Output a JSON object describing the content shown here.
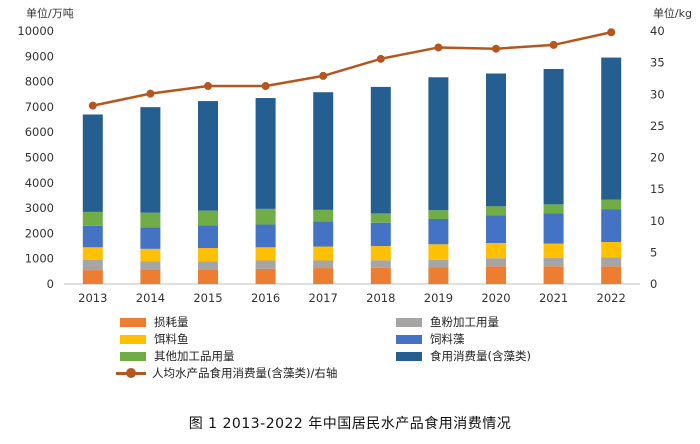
{
  "units": {
    "left": "单位/万吨",
    "right": "单位/kg"
  },
  "caption": "图 1 2013-2022 年中国居民水产品食用消费情况",
  "legend": [
    {
      "key": "loss",
      "label": "损耗量"
    },
    {
      "key": "fishmeal",
      "label": "鱼粉加工用量"
    },
    {
      "key": "feedfish",
      "label": "饵料鱼"
    },
    {
      "key": "feedalgae",
      "label": "饲料藻"
    },
    {
      "key": "otherproc",
      "label": "其他加工品用量"
    },
    {
      "key": "food",
      "label": "食用消费量(含藻类)"
    },
    {
      "key": "percapita",
      "label": "人均水产品食用消费量(含藻类)/右轴"
    }
  ],
  "chart_data": {
    "type": "bar",
    "stacked": true,
    "categories": [
      "2013",
      "2014",
      "2015",
      "2016",
      "2017",
      "2018",
      "2019",
      "2020",
      "2021",
      "2022"
    ],
    "series": [
      {
        "key": "loss",
        "name": "损耗量",
        "color": "#ed7d31",
        "axis": "left",
        "values": [
          550,
          570,
          580,
          600,
          630,
          640,
          650,
          700,
          700,
          700
        ]
      },
      {
        "key": "fishmeal",
        "name": "鱼粉加工用量",
        "color": "#a5a5a5",
        "axis": "left",
        "values": [
          400,
          320,
          320,
          330,
          300,
          300,
          300,
          320,
          340,
          360
        ]
      },
      {
        "key": "feedfish",
        "name": "饵料鱼",
        "color": "#ffc000",
        "axis": "left",
        "values": [
          500,
          500,
          520,
          520,
          550,
          560,
          620,
          600,
          560,
          600
        ]
      },
      {
        "key": "feedalgae",
        "name": "饲料藻",
        "color": "#4472c4",
        "axis": "left",
        "values": [
          850,
          850,
          900,
          900,
          1000,
          920,
          1000,
          1100,
          1200,
          1300
        ]
      },
      {
        "key": "otherproc",
        "name": "其他加工品用量",
        "color": "#70ad47",
        "axis": "left",
        "values": [
          550,
          580,
          580,
          620,
          450,
          370,
          350,
          350,
          350,
          370
        ]
      },
      {
        "key": "food",
        "name": "食用消费量(含藻类)",
        "color": "#255e91",
        "axis": "left",
        "values": [
          3850,
          4170,
          4330,
          4380,
          4650,
          5000,
          5250,
          5250,
          5350,
          5620
        ]
      }
    ],
    "line": {
      "key": "percapita",
      "name": "人均水产品食用消费量(含藻类)/右轴",
      "color": "#b5561f",
      "axis": "right",
      "values": [
        28.2,
        30.1,
        31.3,
        31.3,
        32.9,
        35.6,
        37.4,
        37.2,
        37.8,
        39.8
      ]
    },
    "y_left": {
      "min": 0,
      "max": 10000,
      "step": 1000
    },
    "y_right": {
      "min": 0,
      "max": 40,
      "step": 5
    },
    "grid": false,
    "legend_position": "bottom"
  }
}
